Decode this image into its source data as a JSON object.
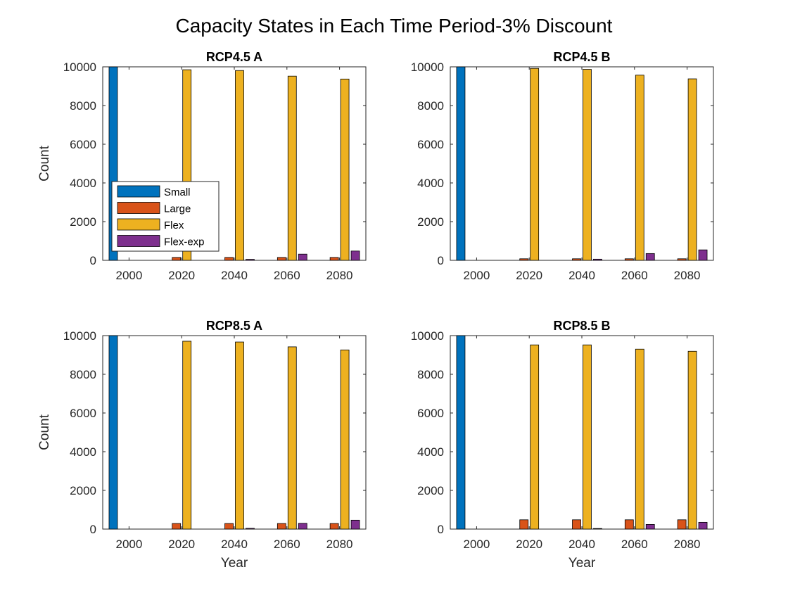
{
  "figure_title": "Capacity States in Each Time Period-3% Discount",
  "legend": {
    "entries": [
      {
        "label": "Small",
        "color": "#0072BD"
      },
      {
        "label": "Large",
        "color": "#D95319"
      },
      {
        "label": "Flex",
        "color": "#EDB120"
      },
      {
        "label": "Flex-exp",
        "color": "#7E2F8E"
      }
    ],
    "placement": "inside, center-left of first panel"
  },
  "chart_data": [
    {
      "type": "bar",
      "title": "RCP4.5 A",
      "xlabel": "",
      "ylabel": "Count",
      "categories": [
        "2000",
        "2020",
        "2040",
        "2060",
        "2080"
      ],
      "ylim": [
        0,
        10000
      ],
      "yticks": [
        "0",
        "2000",
        "4000",
        "6000",
        "8000",
        "10000"
      ],
      "series": [
        {
          "name": "Small",
          "values": [
            10000,
            0,
            0,
            0,
            0
          ]
        },
        {
          "name": "Large",
          "values": [
            0,
            150,
            150,
            150,
            150
          ]
        },
        {
          "name": "Flex",
          "values": [
            0,
            9850,
            9810,
            9520,
            9370
          ]
        },
        {
          "name": "Flex-exp",
          "values": [
            0,
            0,
            50,
            320,
            480
          ]
        }
      ]
    },
    {
      "type": "bar",
      "title": "RCP4.5 B",
      "xlabel": "",
      "ylabel": "",
      "categories": [
        "2000",
        "2020",
        "2040",
        "2060",
        "2080"
      ],
      "ylim": [
        0,
        10000
      ],
      "yticks": [
        "0",
        "2000",
        "4000",
        "6000",
        "8000",
        "10000"
      ],
      "series": [
        {
          "name": "Small",
          "values": [
            10000,
            0,
            0,
            0,
            0
          ]
        },
        {
          "name": "Large",
          "values": [
            0,
            80,
            80,
            80,
            80
          ]
        },
        {
          "name": "Flex",
          "values": [
            0,
            9920,
            9870,
            9570,
            9380
          ]
        },
        {
          "name": "Flex-exp",
          "values": [
            0,
            0,
            60,
            350,
            540
          ]
        }
      ]
    },
    {
      "type": "bar",
      "title": "RCP8.5 A",
      "xlabel": "Year",
      "ylabel": "Count",
      "categories": [
        "2000",
        "2020",
        "2040",
        "2060",
        "2080"
      ],
      "ylim": [
        0,
        10000
      ],
      "yticks": [
        "0",
        "2000",
        "4000",
        "6000",
        "8000",
        "10000"
      ],
      "series": [
        {
          "name": "Small",
          "values": [
            10000,
            0,
            0,
            0,
            0
          ]
        },
        {
          "name": "Large",
          "values": [
            0,
            290,
            290,
            290,
            290
          ]
        },
        {
          "name": "Flex",
          "values": [
            0,
            9710,
            9670,
            9420,
            9260
          ]
        },
        {
          "name": "Flex-exp",
          "values": [
            0,
            0,
            40,
            300,
            460
          ]
        }
      ]
    },
    {
      "type": "bar",
      "title": "RCP8.5 B",
      "xlabel": "Year",
      "ylabel": "",
      "categories": [
        "2000",
        "2020",
        "2040",
        "2060",
        "2080"
      ],
      "ylim": [
        0,
        10000
      ],
      "yticks": [
        "0",
        "2000",
        "4000",
        "6000",
        "8000",
        "10000"
      ],
      "series": [
        {
          "name": "Small",
          "values": [
            10000,
            0,
            0,
            0,
            0
          ]
        },
        {
          "name": "Large",
          "values": [
            0,
            480,
            480,
            480,
            480
          ]
        },
        {
          "name": "Flex",
          "values": [
            0,
            9520,
            9520,
            9300,
            9190
          ]
        },
        {
          "name": "Flex-exp",
          "values": [
            0,
            0,
            30,
            240,
            350
          ]
        }
      ]
    }
  ]
}
